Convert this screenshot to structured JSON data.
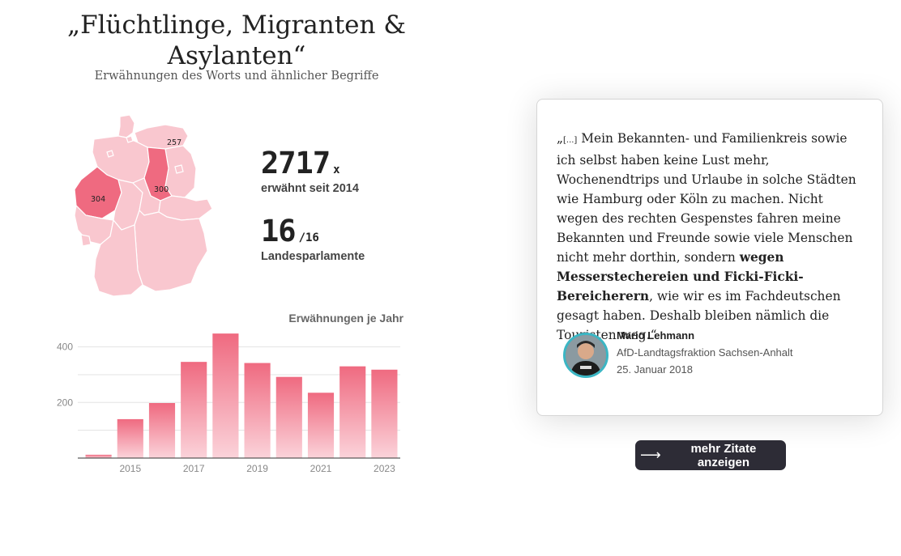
{
  "header": {
    "title": "„Flüchtlinge, Migranten & Asylanten“",
    "subtitle": "Erwähnungen des Worts und ähnlicher Begriffe"
  },
  "map": {
    "labels": [
      {
        "region": "Nordrhein-Westfalen",
        "value": "304"
      },
      {
        "region": "Sachsen-Anhalt",
        "value": "300"
      },
      {
        "region": "Mecklenburg-Vorpommern",
        "value": "257"
      }
    ],
    "colors": {
      "base": "#f9c7cf",
      "highlight": "#ef6a80"
    }
  },
  "stats": {
    "total": "2717",
    "total_unit": "x",
    "total_label": "erwähnt seit 2014",
    "parliaments": "16",
    "parliaments_of": "/16",
    "parliaments_label": "Landesparlamente"
  },
  "chart_data": {
    "type": "bar",
    "title": "Erwähnungen je Jahr",
    "categories": [
      "2014",
      "2015",
      "2016",
      "2017",
      "2018",
      "2019",
      "2020",
      "2021",
      "2022",
      "2023"
    ],
    "values": [
      12,
      140,
      198,
      346,
      448,
      342,
      292,
      235,
      330,
      318
    ],
    "ylim": [
      0,
      460
    ],
    "yticks": [
      200,
      400
    ],
    "xtick_labels": [
      "2015",
      "2017",
      "2019",
      "2021",
      "2023"
    ],
    "grid": true,
    "color": "#ef6a80"
  },
  "quote": {
    "open": "„",
    "ellipsis": "[...]",
    "text": " Mein Bekannten- und Familienkreis sowie ich selbst haben keine Lust mehr, Wochenendtrips und Urlaube in solche Städten wie Hamburg oder Köln zu machen. Nicht wegen des rechten Gespenstes fahren meine Bekannten und Freunde sowie viele Menschen nicht mehr dorthin, sondern ",
    "bold": "wegen Messerstechereien und Ficki-Ficki-Bereicherern",
    "text_end": ", wie wir es im Fachdeutschen gesagt haben. Deshalb bleiben nämlich die Touristen weg.",
    "close": "“",
    "author_name": "Mario Lehmann",
    "author_party": "AfD-Landtagsfraktion Sachsen-Anhalt",
    "date": "25. Januar 2018"
  },
  "more_button": {
    "label": "mehr Zitate anzeigen",
    "icon": "arrow-right-icon"
  }
}
